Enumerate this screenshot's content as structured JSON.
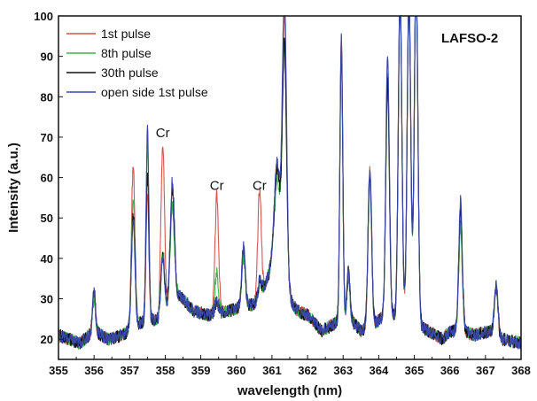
{
  "chart_data": {
    "type": "line",
    "title": "",
    "xlabel": "wavelength (nm)",
    "ylabel": "Intensity (a.u.)",
    "xlim": [
      355,
      368
    ],
    "ylim": [
      15,
      100
    ],
    "xticks": [
      355,
      356,
      357,
      358,
      359,
      360,
      361,
      362,
      363,
      364,
      365,
      366,
      367,
      368
    ],
    "yticks": [
      20,
      30,
      40,
      50,
      60,
      70,
      80,
      90,
      100
    ],
    "grid": false,
    "legend_position": "top-left",
    "sample_label": "LAFSO-2",
    "annotations": [
      {
        "text": "Cr",
        "x": 357.93,
        "y": 70
      },
      {
        "text": "Cr",
        "x": 359.45,
        "y": 57
      },
      {
        "text": "Cr",
        "x": 360.65,
        "y": 57
      }
    ],
    "baseline": [
      [
        355.0,
        21
      ],
      [
        355.3,
        20
      ],
      [
        355.6,
        19
      ],
      [
        356.0,
        22
      ],
      [
        356.4,
        20
      ],
      [
        356.8,
        21
      ],
      [
        357.3,
        24
      ],
      [
        357.8,
        25
      ],
      [
        358.4,
        31
      ],
      [
        358.8,
        27
      ],
      [
        359.2,
        26
      ],
      [
        359.8,
        27
      ],
      [
        360.2,
        28
      ],
      [
        360.6,
        29
      ],
      [
        361.0,
        38
      ],
      [
        361.7,
        27
      ],
      [
        362.0,
        26
      ],
      [
        362.4,
        22
      ],
      [
        362.8,
        24
      ],
      [
        363.2,
        25
      ],
      [
        363.5,
        22
      ],
      [
        363.9,
        24
      ],
      [
        364.2,
        26
      ],
      [
        364.8,
        25
      ],
      [
        365.4,
        22
      ],
      [
        365.8,
        20
      ],
      [
        366.0,
        22
      ],
      [
        366.3,
        22
      ],
      [
        366.7,
        21
      ],
      [
        367.1,
        22
      ],
      [
        367.5,
        20
      ],
      [
        368.0,
        19
      ]
    ],
    "series": [
      {
        "name": "1st pulse",
        "color": "#d9534f",
        "peaks": [
          {
            "x": 356.0,
            "h": 10,
            "w": 0.04
          },
          {
            "x": 357.1,
            "h": 40,
            "w": 0.05
          },
          {
            "x": 357.5,
            "h": 32,
            "w": 0.04
          },
          {
            "x": 357.93,
            "h": 42,
            "w": 0.05
          },
          {
            "x": 358.2,
            "h": 24,
            "w": 0.06
          },
          {
            "x": 359.45,
            "h": 29,
            "w": 0.05
          },
          {
            "x": 360.2,
            "h": 15,
            "w": 0.05
          },
          {
            "x": 360.65,
            "h": 27,
            "w": 0.05
          },
          {
            "x": 361.15,
            "h": 28,
            "w": 0.08
          },
          {
            "x": 361.35,
            "h": 66,
            "w": 0.06
          },
          {
            "x": 362.95,
            "h": 70,
            "w": 0.04
          },
          {
            "x": 363.15,
            "h": 12,
            "w": 0.04
          },
          {
            "x": 363.75,
            "h": 38,
            "w": 0.05
          },
          {
            "x": 364.25,
            "h": 60,
            "w": 0.05
          },
          {
            "x": 364.6,
            "h": 80,
            "w": 0.05
          },
          {
            "x": 364.85,
            "h": 80,
            "w": 0.05
          },
          {
            "x": 365.05,
            "h": 85,
            "w": 0.05
          },
          {
            "x": 366.3,
            "h": 26,
            "w": 0.05
          },
          {
            "x": 367.3,
            "h": 12,
            "w": 0.05
          }
        ]
      },
      {
        "name": "8th pulse",
        "color": "#3cb54a",
        "peaks": [
          {
            "x": 356.0,
            "h": 8,
            "w": 0.04
          },
          {
            "x": 357.1,
            "h": 32,
            "w": 0.05
          },
          {
            "x": 357.5,
            "h": 44,
            "w": 0.04
          },
          {
            "x": 357.93,
            "h": 16,
            "w": 0.05
          },
          {
            "x": 358.2,
            "h": 24,
            "w": 0.06
          },
          {
            "x": 359.45,
            "h": 10,
            "w": 0.05
          },
          {
            "x": 360.2,
            "h": 12,
            "w": 0.05
          },
          {
            "x": 360.65,
            "h": 4,
            "w": 0.05
          },
          {
            "x": 361.15,
            "h": 24,
            "w": 0.08
          },
          {
            "x": 361.35,
            "h": 60,
            "w": 0.06
          },
          {
            "x": 362.95,
            "h": 66,
            "w": 0.04
          },
          {
            "x": 363.15,
            "h": 10,
            "w": 0.04
          },
          {
            "x": 363.75,
            "h": 36,
            "w": 0.05
          },
          {
            "x": 364.25,
            "h": 56,
            "w": 0.05
          },
          {
            "x": 364.6,
            "h": 80,
            "w": 0.05
          },
          {
            "x": 364.85,
            "h": 80,
            "w": 0.05
          },
          {
            "x": 365.05,
            "h": 85,
            "w": 0.05
          },
          {
            "x": 366.3,
            "h": 26,
            "w": 0.05
          },
          {
            "x": 367.3,
            "h": 12,
            "w": 0.05
          }
        ]
      },
      {
        "name": "30th pulse",
        "color": "#111111",
        "peaks": [
          {
            "x": 356.0,
            "h": 10,
            "w": 0.04
          },
          {
            "x": 357.1,
            "h": 28,
            "w": 0.05
          },
          {
            "x": 357.5,
            "h": 36,
            "w": 0.04
          },
          {
            "x": 357.93,
            "h": 14,
            "w": 0.05
          },
          {
            "x": 358.2,
            "h": 28,
            "w": 0.06
          },
          {
            "x": 359.45,
            "h": 3,
            "w": 0.05
          },
          {
            "x": 360.2,
            "h": 14,
            "w": 0.05
          },
          {
            "x": 360.65,
            "h": 4,
            "w": 0.05
          },
          {
            "x": 361.15,
            "h": 26,
            "w": 0.08
          },
          {
            "x": 361.35,
            "h": 60,
            "w": 0.06
          },
          {
            "x": 362.95,
            "h": 68,
            "w": 0.04
          },
          {
            "x": 363.15,
            "h": 12,
            "w": 0.04
          },
          {
            "x": 363.75,
            "h": 38,
            "w": 0.05
          },
          {
            "x": 364.25,
            "h": 58,
            "w": 0.05
          },
          {
            "x": 364.6,
            "h": 80,
            "w": 0.05
          },
          {
            "x": 364.85,
            "h": 80,
            "w": 0.05
          },
          {
            "x": 365.05,
            "h": 85,
            "w": 0.05
          },
          {
            "x": 366.3,
            "h": 30,
            "w": 0.05
          },
          {
            "x": 367.3,
            "h": 12,
            "w": 0.05
          }
        ]
      },
      {
        "name": "open side 1st pulse",
        "color": "#3a46a8",
        "peaks": [
          {
            "x": 356.0,
            "h": 10,
            "w": 0.04
          },
          {
            "x": 357.1,
            "h": 27,
            "w": 0.05
          },
          {
            "x": 357.5,
            "h": 47,
            "w": 0.04
          },
          {
            "x": 357.93,
            "h": 14,
            "w": 0.05
          },
          {
            "x": 358.2,
            "h": 30,
            "w": 0.06
          },
          {
            "x": 359.45,
            "h": 3,
            "w": 0.05
          },
          {
            "x": 360.2,
            "h": 15,
            "w": 0.05
          },
          {
            "x": 360.65,
            "h": 5,
            "w": 0.05
          },
          {
            "x": 361.15,
            "h": 28,
            "w": 0.08
          },
          {
            "x": 361.35,
            "h": 72,
            "w": 0.06
          },
          {
            "x": 362.95,
            "h": 70,
            "w": 0.04
          },
          {
            "x": 363.15,
            "h": 12,
            "w": 0.04
          },
          {
            "x": 363.75,
            "h": 38,
            "w": 0.05
          },
          {
            "x": 364.25,
            "h": 64,
            "w": 0.05
          },
          {
            "x": 364.6,
            "h": 80,
            "w": 0.05
          },
          {
            "x": 364.85,
            "h": 80,
            "w": 0.05
          },
          {
            "x": 365.05,
            "h": 85,
            "w": 0.05
          },
          {
            "x": 366.3,
            "h": 32,
            "w": 0.05
          },
          {
            "x": 367.3,
            "h": 12,
            "w": 0.05
          }
        ]
      }
    ]
  }
}
